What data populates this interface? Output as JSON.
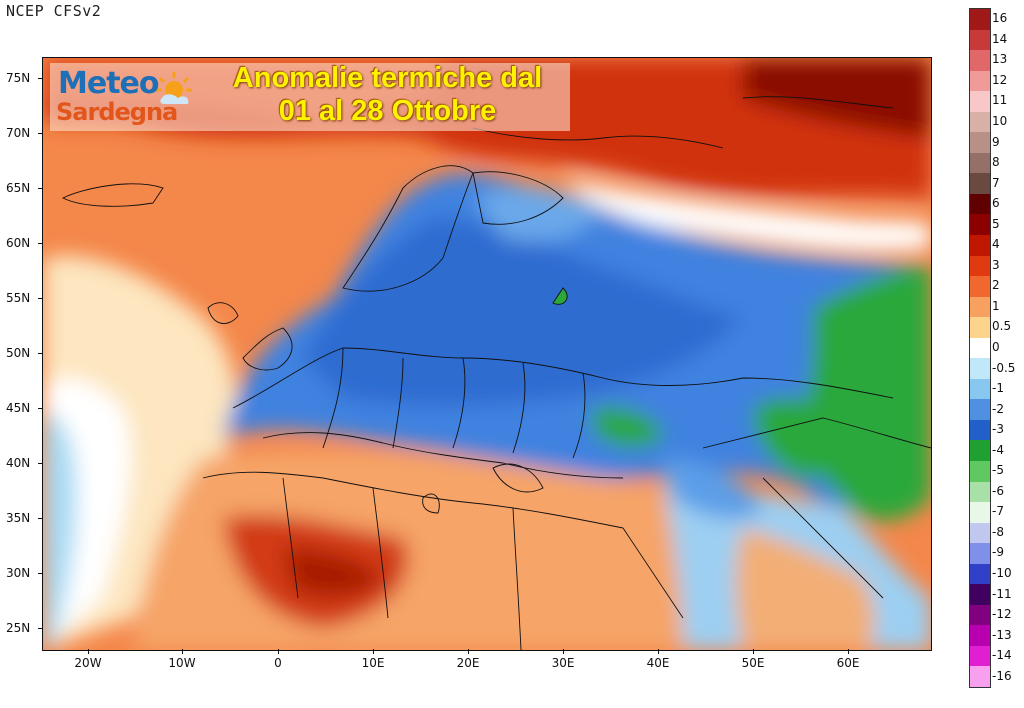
{
  "source_label": "NCEP CFSv2",
  "logo": {
    "line1": "Meteo",
    "line2": "Sardegna"
  },
  "headline": {
    "line1": "Anomalie termiche dal",
    "line2": "01 al 28 Ottobre"
  },
  "lat_labels": [
    "75N",
    "70N",
    "65N",
    "60N",
    "55N",
    "50N",
    "45N",
    "40N",
    "35N",
    "30N",
    "25N"
  ],
  "lon_labels": [
    "20W",
    "10W",
    "0",
    "10E",
    "20E",
    "30E",
    "40E",
    "50E",
    "60E"
  ],
  "colorbar": [
    {
      "label": "16",
      "color": "#a01818"
    },
    {
      "label": "14",
      "color": "#c83a3a"
    },
    {
      "label": "13",
      "color": "#e06868"
    },
    {
      "label": "12",
      "color": "#f09a9a"
    },
    {
      "label": "11",
      "color": "#f8c8c8"
    },
    {
      "label": "10",
      "color": "#d8b0a8"
    },
    {
      "label": "9",
      "color": "#b89088"
    },
    {
      "label": "8",
      "color": "#957068"
    },
    {
      "label": "7",
      "color": "#6a4a40"
    },
    {
      "label": "6",
      "color": "#600000"
    },
    {
      "label": "5",
      "color": "#8c0000"
    },
    {
      "label": "4",
      "color": "#c01800"
    },
    {
      "label": "3",
      "color": "#e03a10"
    },
    {
      "label": "2",
      "color": "#f06830"
    },
    {
      "label": "1",
      "color": "#f8a060"
    },
    {
      "label": "0.5",
      "color": "#fcd48c"
    },
    {
      "label": "0",
      "color": "#ffffff"
    },
    {
      "label": "-0.5",
      "color": "#bfe8f8"
    },
    {
      "label": "-1",
      "color": "#88c8f0"
    },
    {
      "label": "-2",
      "color": "#5090e0"
    },
    {
      "label": "-3",
      "color": "#2060c8"
    },
    {
      "label": "-4",
      "color": "#20a030"
    },
    {
      "label": "-5",
      "color": "#60c860"
    },
    {
      "label": "-6",
      "color": "#a8e0a8"
    },
    {
      "label": "-7",
      "color": "#e8f8e8"
    },
    {
      "label": "-8",
      "color": "#c0c8f0"
    },
    {
      "label": "-9",
      "color": "#8090e8"
    },
    {
      "label": "-10",
      "color": "#3040c8"
    },
    {
      "label": "-11",
      "color": "#400060"
    },
    {
      "label": "-12",
      "color": "#800080"
    },
    {
      "label": "-13",
      "color": "#b800b0"
    },
    {
      "label": "-14",
      "color": "#e020d0"
    },
    {
      "label": "-16",
      "color": "#f8a0f0"
    }
  ]
}
